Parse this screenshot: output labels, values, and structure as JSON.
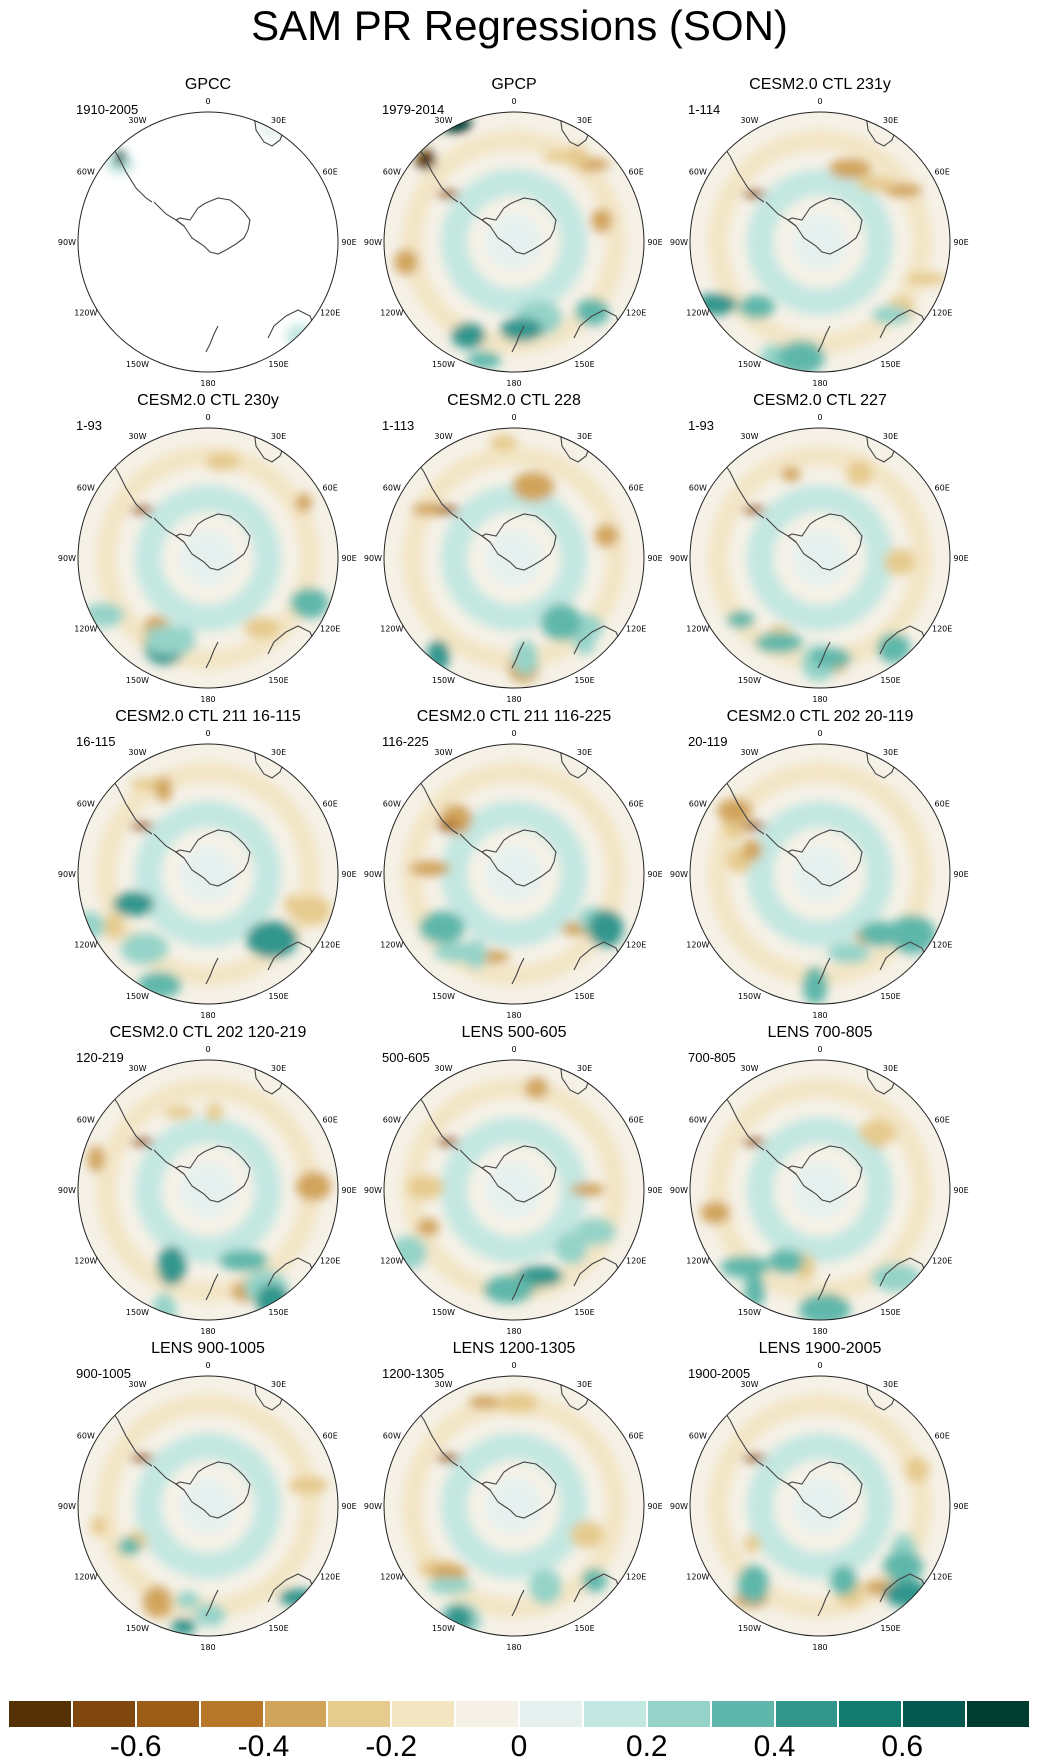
{
  "figure": {
    "title": "SAM PR Regressions (SON)"
  },
  "longitude_labels": [
    "0",
    "30E",
    "60E",
    "90E",
    "120E",
    "150E",
    "180",
    "150W",
    "120W",
    "90W",
    "60W",
    "30W"
  ],
  "panels": [
    {
      "name": "GPCC",
      "period": "1910-2005"
    },
    {
      "name": "GPCP",
      "period": "1979-2014"
    },
    {
      "name": "CESM2.0 CTL 231y",
      "period": "1-114"
    },
    {
      "name": "CESM2.0 CTL 230y",
      "period": "1-93"
    },
    {
      "name": "CESM2.0 CTL 228",
      "period": "1-113"
    },
    {
      "name": "CESM2.0 CTL 227",
      "period": "1-93"
    },
    {
      "name": "CESM2.0 CTL 211 16-115",
      "period": "16-115"
    },
    {
      "name": "CESM2.0 CTL 211 116-225",
      "period": "116-225"
    },
    {
      "name": "CESM2.0 CTL 202 20-119",
      "period": "20-119"
    },
    {
      "name": "CESM2.0 CTL 202 120-219",
      "period": "120-219"
    },
    {
      "name": "LENS 500-605",
      "period": "500-605"
    },
    {
      "name": "LENS 700-805",
      "period": "700-805"
    },
    {
      "name": "LENS 900-1005",
      "period": "900-1005"
    },
    {
      "name": "LENS 1200-1305",
      "period": "1200-1305"
    },
    {
      "name": "LENS 1900-2005",
      "period": "1900-2005"
    }
  ],
  "colorbar": {
    "colors": [
      "#543005",
      "#7f470e",
      "#9b5d17",
      "#b8782a",
      "#d1a45c",
      "#e6cb8e",
      "#f3e4c2",
      "#f5f1e7",
      "#e6f1ef",
      "#c3e7e1",
      "#95d3c8",
      "#5eb7aa",
      "#33968d",
      "#137a6f",
      "#03594f",
      "#003c30"
    ],
    "labels": [
      "-0.6",
      "-0.4",
      "-0.2",
      "0",
      "0.2",
      "0.4",
      "0.6"
    ]
  }
}
